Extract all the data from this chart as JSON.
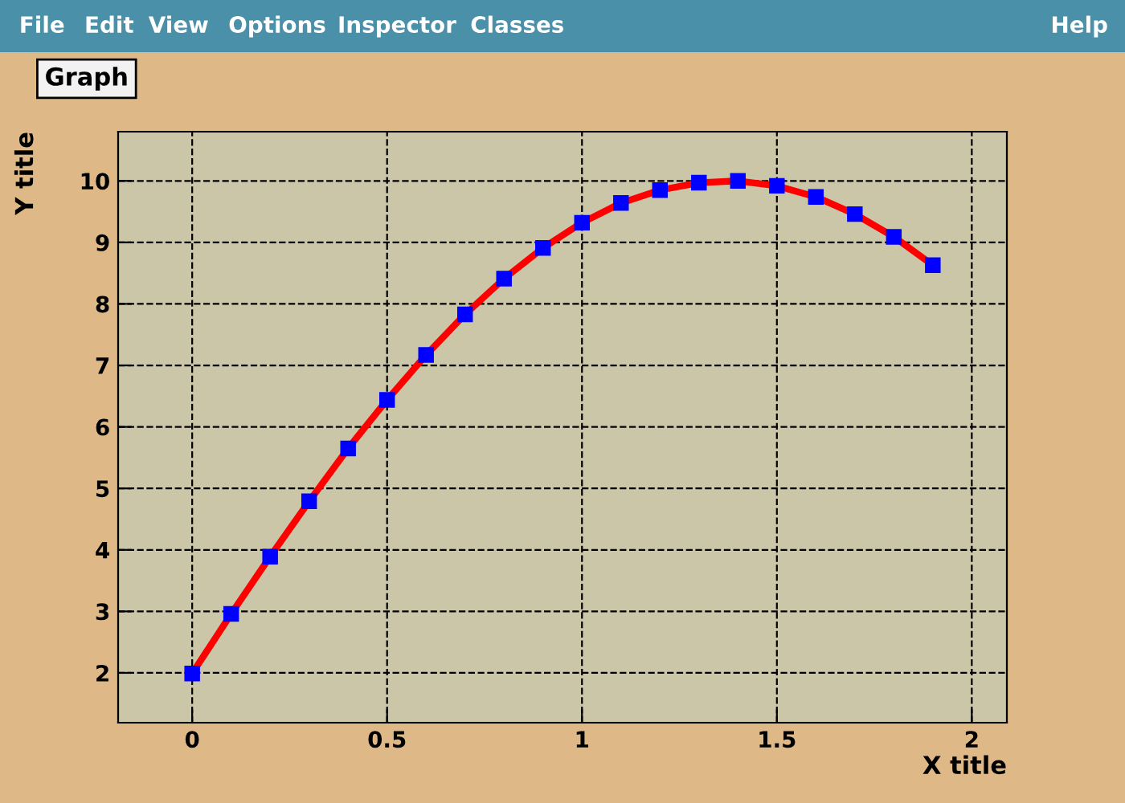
{
  "chart_data": {
    "type": "line",
    "title": "Graph",
    "xlabel": "X title",
    "ylabel": "Y title",
    "annotations": [
      "File",
      "Edit",
      "View",
      "Options",
      "Inspector",
      "Classes",
      "Help"
    ],
    "x": [
      0,
      0.1,
      0.2,
      0.3,
      0.4,
      0.5,
      0.6,
      0.7,
      0.8,
      0.9,
      1.0,
      1.1,
      1.2,
      1.3,
      1.4,
      1.5,
      1.6,
      1.7,
      1.8,
      1.9
    ],
    "series": [
      {
        "color": "#ff0000",
        "marker": "none",
        "values": [
          1.99,
          2.96,
          3.89,
          4.79,
          5.65,
          6.44,
          7.17,
          7.83,
          8.41,
          8.91,
          9.32,
          9.64,
          9.85,
          9.97,
          10.0,
          9.92,
          9.74,
          9.46,
          9.09,
          8.63
        ]
      },
      {
        "type": "scatter",
        "color": "#0000ff",
        "marker": "square",
        "values": [
          1.99,
          2.96,
          3.89,
          4.79,
          5.65,
          6.44,
          7.17,
          7.83,
          8.41,
          8.91,
          9.32,
          9.64,
          9.85,
          9.97,
          10.0,
          9.92,
          9.74,
          9.46,
          9.09,
          8.63
        ]
      }
    ],
    "xlim": [
      -0.19,
      2.09
    ],
    "ylim": [
      1.19,
      10.8
    ],
    "xticks": [
      0,
      0.5,
      1,
      1.5,
      2
    ],
    "yticks": [
      2,
      3,
      4,
      5,
      6,
      7,
      8,
      9,
      10
    ],
    "grid": true,
    "line_style": "solid",
    "legend": false
  }
}
